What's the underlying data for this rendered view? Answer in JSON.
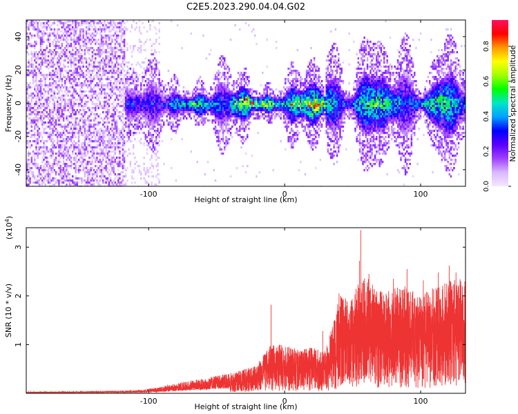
{
  "title": "C2E5.2023.290.04.04.G02",
  "chart_data": [
    {
      "type": "heatmap",
      "xlabel": "Height of straight line (km)",
      "ylabel": "Frequency (Hz)",
      "xlim": [
        -190,
        133
      ],
      "ylim": [
        -50,
        50
      ],
      "xticks": [
        -100,
        0,
        100
      ],
      "yticks": [
        -40,
        -20,
        0,
        20,
        40
      ],
      "colorbar": {
        "label": "Normalized spectral amplitude",
        "range": [
          0,
          0.95
        ],
        "ticks": [
          0.0,
          0.2,
          0.4,
          0.6,
          0.8
        ],
        "tick_labels": [
          "0.0",
          "0.2",
          "0.4",
          "0.6",
          "0.8"
        ],
        "colors": [
          "#f3e8ff",
          "#d9b8ff",
          "#a040ff",
          "#5a00ff",
          "#0000ff",
          "#00a0ff",
          "#00e6c8",
          "#00ff00",
          "#a0ff00",
          "#ffff00",
          "#ff9900",
          "#ff0000",
          "#ff1060"
        ]
      }
    },
    {
      "type": "line",
      "series_color": "#ee3333",
      "xlabel": "Height of straight line (km)",
      "ylabel": "SNR (10 * v/v)",
      "scale_label": "(x10",
      "scale_exp": "4",
      "scale_close": ")",
      "xlim": [
        -190,
        133
      ],
      "ylim": [
        0,
        3.4
      ],
      "xticks": [
        -100,
        0,
        100
      ],
      "yticks": [
        1,
        2,
        3
      ],
      "envelope": {
        "x": [
          -190,
          -150,
          -110,
          -100,
          -90,
          -80,
          -70,
          -60,
          -50,
          -40,
          -30,
          -20,
          -10,
          0,
          10,
          20,
          28,
          32,
          40,
          50,
          55,
          60,
          70,
          80,
          90,
          100,
          110,
          120,
          133
        ],
        "y": [
          0.03,
          0.04,
          0.06,
          0.09,
          0.14,
          0.2,
          0.26,
          0.3,
          0.36,
          0.42,
          0.5,
          0.6,
          1.05,
          1.0,
          0.9,
          0.95,
          0.85,
          1.1,
          2.0,
          2.05,
          2.3,
          2.4,
          2.1,
          2.2,
          2.2,
          2.0,
          2.2,
          2.3,
          2.4
        ]
      },
      "peaks": [
        {
          "x": -10,
          "y": 1.82
        },
        {
          "x": 28,
          "y": 1.28
        },
        {
          "x": 40,
          "y": 2.05
        },
        {
          "x": 55,
          "y": 2.72
        },
        {
          "x": 56,
          "y": 3.35
        },
        {
          "x": 62,
          "y": 2.45
        },
        {
          "x": 80,
          "y": 2.35
        },
        {
          "x": 90,
          "y": 2.55
        },
        {
          "x": 102,
          "y": 2.32
        },
        {
          "x": 113,
          "y": 2.48
        },
        {
          "x": 121,
          "y": 2.62
        },
        {
          "x": 126,
          "y": 2.48
        }
      ]
    }
  ]
}
